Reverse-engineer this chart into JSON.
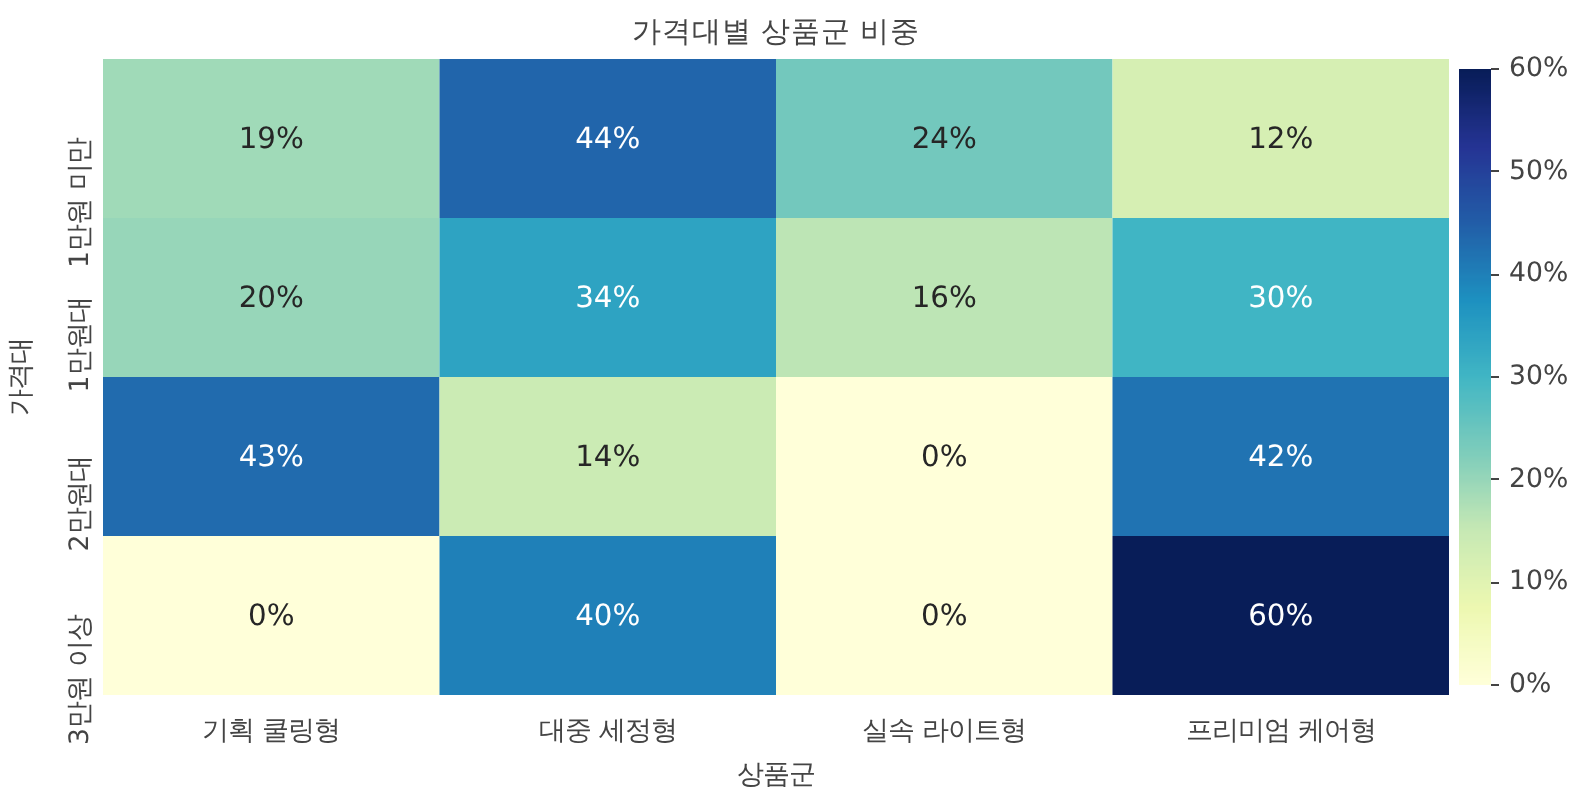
{
  "chart_data": {
    "type": "heatmap",
    "title": "가격대별 상품군 비중",
    "xlabel": "상품군",
    "ylabel": "가격대",
    "categories": [
      "기획 쿨링형",
      "대중 세정형",
      "실속 라이트형",
      "프리미엄 케어형"
    ],
    "y_categories": [
      "1만원 미만",
      "1만원대",
      "2만원대",
      "3만원 이상"
    ],
    "cells": [
      [
        19,
        44,
        24,
        12
      ],
      [
        20,
        34,
        16,
        30
      ],
      [
        43,
        14,
        0,
        42
      ],
      [
        0,
        40,
        0,
        60
      ]
    ],
    "cell_labels": [
      [
        "19%",
        "44%",
        "24%",
        "12%"
      ],
      [
        "20%",
        "34%",
        "16%",
        "30%"
      ],
      [
        "43%",
        "14%",
        "0%",
        "42%"
      ],
      [
        "0%",
        "40%",
        "0%",
        "60%"
      ]
    ],
    "clim": [
      0,
      60
    ],
    "cticks": [
      {
        "value": 0,
        "label": "0%"
      },
      {
        "value": 10,
        "label": "10%"
      },
      {
        "value": 20,
        "label": "20%"
      },
      {
        "value": 30,
        "label": "30%"
      },
      {
        "value": 40,
        "label": "40%"
      },
      {
        "value": 50,
        "label": "50%"
      },
      {
        "value": 60,
        "label": "60%"
      }
    ]
  }
}
